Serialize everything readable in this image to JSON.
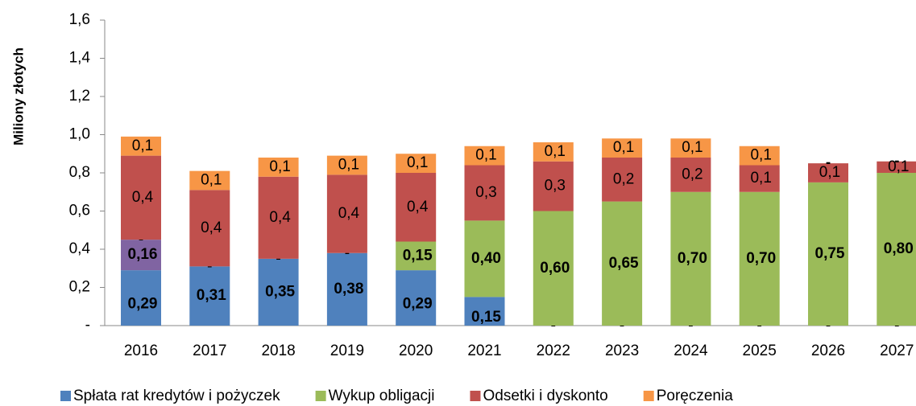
{
  "chart_data": {
    "type": "stacked_bar",
    "y_label": "Miliony złotych",
    "categories": [
      "2016",
      "2017",
      "2018",
      "2019",
      "2020",
      "2021",
      "2022",
      "2023",
      "2024",
      "2025",
      "2026",
      "2027"
    ],
    "ylim": [
      0,
      1.6
    ],
    "yticks": [
      {
        "value": 0,
        "label": "-"
      },
      {
        "value": 0.2,
        "label": "0,2"
      },
      {
        "value": 0.4,
        "label": "0,4"
      },
      {
        "value": 0.6,
        "label": "0,6"
      },
      {
        "value": 0.8,
        "label": "0,8"
      },
      {
        "value": 1.0,
        "label": "1,0"
      },
      {
        "value": 1.2,
        "label": "1,2"
      },
      {
        "value": 1.4,
        "label": "1,4"
      },
      {
        "value": 1.6,
        "label": "1,6"
      }
    ],
    "series": [
      {
        "name": "Spłata rat kredytów i pożyczek",
        "color": "#4f81bd",
        "values": [
          0.29,
          0.31,
          0.35,
          0.38,
          0.29,
          0.15,
          0,
          0,
          0,
          0,
          0,
          0
        ],
        "value_labels": [
          "0,29",
          "0,31",
          "0,35",
          "0,38",
          "0,29",
          "0,15",
          "-",
          "-",
          "-",
          "-",
          "-",
          "-"
        ]
      },
      {
        "color": "#8064a2",
        "values": [
          0.16,
          null,
          null,
          null,
          null,
          null,
          null,
          null,
          null,
          null,
          null,
          null
        ],
        "value_labels": [
          "0,16",
          null,
          null,
          null,
          null,
          null,
          null,
          null,
          null,
          null,
          null,
          null
        ]
      },
      {
        "name": "Wykup obligacji",
        "color": "#9bbb59",
        "values": [
          0,
          0,
          0,
          0,
          0.15,
          0.4,
          0.6,
          0.65,
          0.7,
          0.7,
          0.75,
          0.8
        ],
        "value_labels": [
          "-",
          "-",
          "-",
          "-",
          "0,15",
          "0,40",
          "0,60",
          "0,65",
          "0,70",
          "0,70",
          "0,75",
          "0,80"
        ]
      },
      {
        "name": "Odsetki i dyskonto",
        "color": "#c0504d",
        "values": [
          0.44,
          0.4,
          0.43,
          0.41,
          0.36,
          0.29,
          0.26,
          0.23,
          0.18,
          0.14,
          0.1,
          0.06
        ],
        "value_labels": [
          "0,4",
          "0,4",
          "0,4",
          "0,4",
          "0,4",
          "0,3",
          "0,3",
          "0,2",
          "0,2",
          "0,1",
          "0,1",
          "0,1"
        ]
      },
      {
        "name": "Poręczenia",
        "color": "#f79646",
        "values": [
          0.1,
          0.1,
          0.1,
          0.1,
          0.1,
          0.1,
          0.1,
          0.1,
          0.1,
          0.1,
          0,
          0
        ],
        "value_labels": [
          "0,1",
          "0,1",
          "0,1",
          "0,1",
          "0,1",
          "0,1",
          "0,1",
          "0,1",
          "0,1",
          "0,1",
          "-",
          "-"
        ]
      }
    ]
  }
}
